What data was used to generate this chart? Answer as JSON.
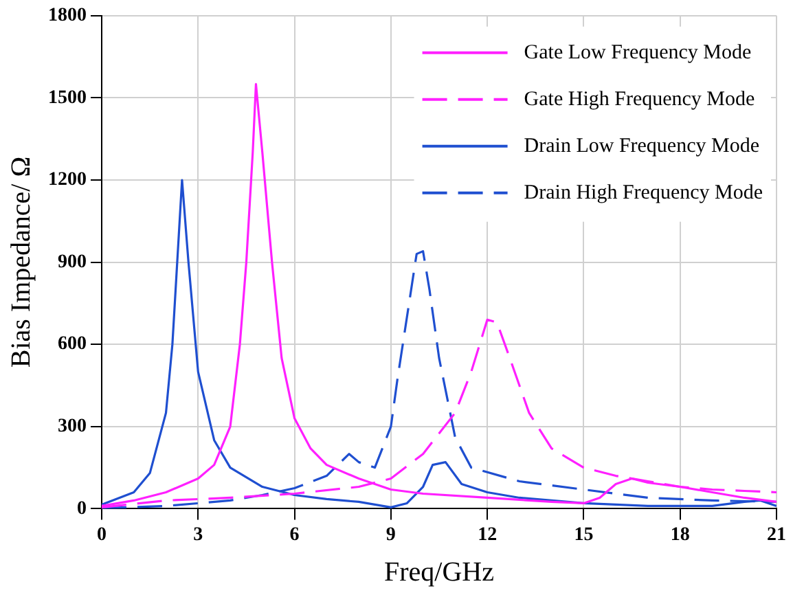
{
  "chart_data": {
    "type": "line",
    "xlabel": "Freq/GHz",
    "ylabel": "Bias Impedance/ Ω",
    "xlim": [
      0,
      21
    ],
    "ylim": [
      0,
      1800
    ],
    "xticks": [
      0,
      3,
      6,
      9,
      12,
      15,
      18,
      21
    ],
    "yticks": [
      0,
      300,
      600,
      900,
      1200,
      1500,
      1800
    ],
    "grid": true,
    "legend": "top right",
    "marker": "none",
    "series": [
      {
        "name": "Gate Low Frequency Mode",
        "color": "#ff20ff",
        "line_style": "solid",
        "x": [
          0,
          1,
          2,
          3,
          3.5,
          4,
          4.3,
          4.5,
          4.7,
          4.8,
          5,
          5.3,
          5.6,
          6,
          6.5,
          7,
          8,
          9,
          10,
          12,
          14,
          15,
          15.5,
          16,
          16.5,
          17,
          18,
          19,
          20,
          21
        ],
        "values": [
          10,
          30,
          60,
          110,
          160,
          300,
          600,
          900,
          1300,
          1550,
          1300,
          900,
          550,
          330,
          220,
          160,
          110,
          70,
          55,
          40,
          25,
          20,
          40,
          90,
          110,
          95,
          80,
          60,
          40,
          25
        ]
      },
      {
        "name": "Gate High Frequency Mode",
        "color": "#ff20ff",
        "line_style": "dashed",
        "x": [
          0,
          2,
          4,
          6,
          8,
          9,
          10,
          11,
          11.5,
          12,
          12.3,
          12.7,
          13.3,
          14,
          15,
          16,
          17,
          18,
          19,
          20,
          21
        ],
        "values": [
          5,
          30,
          40,
          55,
          80,
          110,
          200,
          350,
          500,
          690,
          680,
          550,
          350,
          220,
          150,
          120,
          100,
          80,
          70,
          65,
          60
        ]
      },
      {
        "name": "Drain Low Frequency Mode",
        "color": "#1f4fd0",
        "line_style": "solid",
        "x": [
          0,
          1,
          1.5,
          2,
          2.2,
          2.4,
          2.5,
          2.7,
          3,
          3.5,
          4,
          5,
          6,
          7,
          8,
          9,
          9.5,
          10,
          10.3,
          10.7,
          11.2,
          12,
          13,
          15,
          17,
          19,
          20,
          20.5,
          21
        ],
        "values": [
          15,
          60,
          130,
          350,
          600,
          1000,
          1200,
          900,
          500,
          250,
          150,
          80,
          50,
          35,
          25,
          5,
          20,
          80,
          160,
          170,
          90,
          60,
          40,
          20,
          10,
          10,
          25,
          30,
          10
        ]
      },
      {
        "name": "Drain High Frequency Mode",
        "color": "#1f4fd0",
        "line_style": "dashed",
        "x": [
          0,
          2,
          4,
          5,
          6,
          7,
          7.7,
          8,
          8.5,
          9,
          9.2,
          9.5,
          9.8,
          10,
          10.2,
          10.5,
          11,
          11.5,
          13,
          15,
          17,
          19,
          21
        ],
        "values": [
          2,
          10,
          30,
          50,
          75,
          120,
          200,
          170,
          150,
          300,
          470,
          700,
          930,
          940,
          800,
          550,
          260,
          150,
          100,
          70,
          40,
          30,
          25
        ]
      }
    ]
  }
}
